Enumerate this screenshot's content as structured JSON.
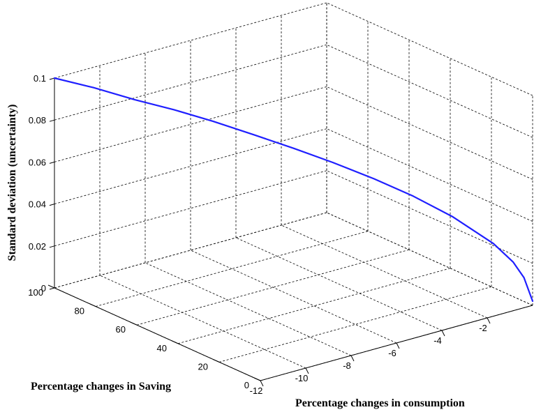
{
  "chart_data": {
    "type": "line",
    "title": "",
    "xlabel": "Percentage changes in consumption",
    "ylabel": "Percentage changes in Saving",
    "zlabel": "Standard deviation (uncertainty)",
    "xlim": [
      -12,
      0
    ],
    "ylim": [
      0,
      100
    ],
    "zlim": [
      0,
      0.1
    ],
    "x_ticks": [
      -12,
      -10,
      -8,
      -6,
      -4,
      -2
    ],
    "y_ticks": [
      0,
      20,
      40,
      60,
      80,
      100
    ],
    "z_ticks": [
      0,
      0.02,
      0.04,
      0.06,
      0.08,
      0.1
    ],
    "grid": true,
    "line_color": "#1f1fff",
    "series": [
      {
        "x": [
          -12,
          -11,
          -10,
          -9,
          -8,
          -7,
          -6,
          -5,
          -4,
          -3,
          -2,
          -1,
          -0.5,
          -0.2,
          0
        ],
        "y": [
          100,
          92,
          83,
          75,
          67,
          58,
          50,
          42,
          33,
          25,
          17,
          8,
          4,
          2,
          0
        ],
        "z": [
          0.1,
          0.096,
          0.0912,
          0.087,
          0.082,
          0.0765,
          0.0707,
          0.0645,
          0.0577,
          0.05,
          0.0408,
          0.0289,
          0.0204,
          0.0129,
          0.002
        ]
      }
    ]
  }
}
